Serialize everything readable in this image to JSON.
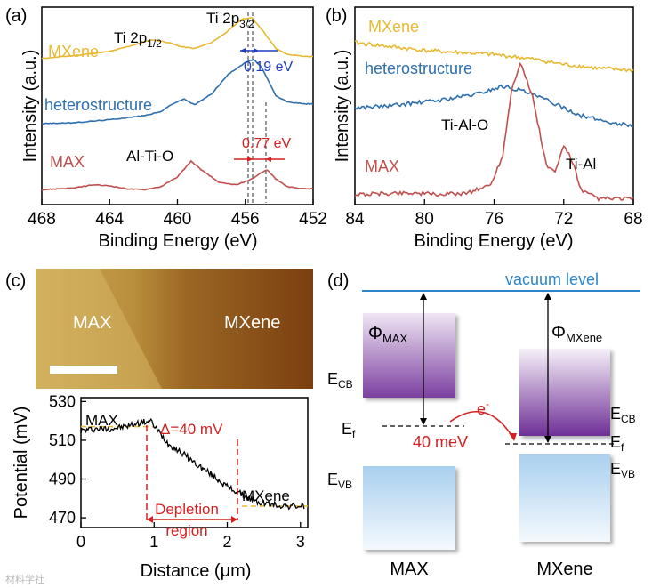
{
  "panel_labels": [
    "(a)",
    "(b)",
    "(c)",
    "(d)"
  ],
  "colors": {
    "mxene": "#e8b830",
    "hetero": "#2e6fad",
    "max": "#c0504d",
    "annot_blue": "#1f3fbf",
    "annot_red": "#d42020",
    "vacuum": "#2e86c8"
  },
  "chart_data": [
    {
      "type": "line",
      "panel": "(a)",
      "xlabel": "Binding Energy (eV)",
      "ylabel": "Intensity (a.u.)",
      "xlim": [
        468,
        452
      ],
      "x_ticks": [
        "468",
        "464",
        "460",
        "456",
        "452"
      ],
      "series": [
        {
          "name": "MXene",
          "x": [
            468,
            466,
            464,
            462.5,
            461.5,
            460.5,
            459.8,
            459,
            458,
            457,
            456.2,
            455.6,
            455,
            454.2,
            453.5,
            452.5
          ],
          "y": [
            0.74,
            0.755,
            0.775,
            0.81,
            0.835,
            0.82,
            0.8,
            0.79,
            0.82,
            0.88,
            0.94,
            0.945,
            0.885,
            0.79,
            0.76,
            0.75
          ]
        },
        {
          "name": "heterostructure",
          "x": [
            468,
            466,
            464,
            462,
            461,
            460.3,
            459.6,
            459,
            458,
            457,
            456,
            455.5,
            455,
            454.6,
            454.2,
            453.5,
            452.5
          ],
          "y": [
            0.41,
            0.415,
            0.43,
            0.45,
            0.47,
            0.51,
            0.535,
            0.505,
            0.56,
            0.66,
            0.72,
            0.735,
            0.69,
            0.62,
            0.55,
            0.52,
            0.51
          ]
        },
        {
          "name": "MAX",
          "x": [
            468,
            466,
            465,
            464,
            463,
            462,
            461,
            460,
            459.5,
            459.2,
            458.5,
            457.5,
            456.5,
            455.6,
            455,
            454.7,
            454.2,
            453.5,
            452.5
          ],
          "y": [
            0.075,
            0.085,
            0.1,
            0.095,
            0.08,
            0.075,
            0.09,
            0.14,
            0.19,
            0.22,
            0.17,
            0.11,
            0.1,
            0.13,
            0.165,
            0.175,
            0.13,
            0.09,
            0.08
          ]
        }
      ],
      "annotations": [
        "Ti 2p3/2",
        "Ti 2p1/2",
        "0.19 eV",
        "Al-Ti-O",
        "0.77 eV"
      ]
    },
    {
      "type": "line",
      "panel": "(b)",
      "xlabel": "Binding Energy (eV)",
      "ylabel": "Intensity (a.u.)",
      "xlim": [
        84,
        68
      ],
      "x_ticks": [
        "84",
        "80",
        "76",
        "72",
        "68"
      ],
      "series": [
        {
          "name": "MXene",
          "x": [
            84,
            82,
            80,
            78,
            76,
            74,
            72,
            70,
            68
          ],
          "y": [
            0.82,
            0.8,
            0.78,
            0.77,
            0.76,
            0.74,
            0.71,
            0.69,
            0.68
          ]
        },
        {
          "name": "heterostructure",
          "x": [
            84,
            82,
            80,
            79,
            77,
            75.5,
            74.5,
            73,
            71,
            69,
            68
          ],
          "y": [
            0.49,
            0.5,
            0.52,
            0.53,
            0.56,
            0.6,
            0.58,
            0.53,
            0.45,
            0.41,
            0.4
          ]
        },
        {
          "name": "MAX",
          "x": [
            84,
            81,
            79,
            77.5,
            76.2,
            75.5,
            75,
            74.5,
            73.8,
            73,
            72.5,
            72,
            71.5,
            71,
            70,
            68
          ],
          "y": [
            0.05,
            0.06,
            0.05,
            0.06,
            0.1,
            0.25,
            0.58,
            0.72,
            0.55,
            0.2,
            0.16,
            0.3,
            0.22,
            0.07,
            0.03,
            0.03
          ]
        }
      ],
      "annotations": [
        "Ti-Al-O",
        "Ti-Al"
      ]
    },
    {
      "type": "line",
      "panel": "(c)",
      "xlabel": "Distance (μm)",
      "ylabel": "Potential (mV)",
      "xlim": [
        0,
        3.1
      ],
      "ylim": [
        465,
        532
      ],
      "x_ticks": [
        "0",
        "1",
        "2",
        "3"
      ],
      "y_ticks": [
        "470",
        "490",
        "510",
        "530"
      ],
      "series": [
        {
          "name": "profile",
          "x": [
            0,
            0.2,
            0.4,
            0.6,
            0.8,
            0.95,
            1.05,
            1.2,
            1.4,
            1.6,
            1.8,
            2.0,
            2.2,
            2.4,
            2.6,
            2.8,
            3.0,
            3.05
          ],
          "y": [
            515,
            516,
            516,
            517,
            519,
            520,
            515,
            508,
            503,
            497,
            492,
            486,
            482,
            478,
            477,
            476,
            476,
            476
          ]
        }
      ],
      "annotations": [
        "MAX",
        "Δ=40 mV",
        "MXene",
        "Depletion",
        "region"
      ],
      "image_labels": [
        "MAX",
        "MXene"
      ]
    }
  ],
  "band_diagram": {
    "vacuum_label": "vacuum level",
    "phi_max": "Φ",
    "phi_max_sub": "MAX",
    "phi_mxene": "Φ",
    "phi_mxene_sub": "MXene",
    "e_prefix": "E",
    "cb_sub": "CB",
    "vb_sub": "VB",
    "f_sub": "f",
    "electron": "e",
    "electron_sup": "-",
    "delta": "40 meV",
    "left_label": "MAX",
    "right_label": "MXene"
  },
  "watermark": "材料学社"
}
